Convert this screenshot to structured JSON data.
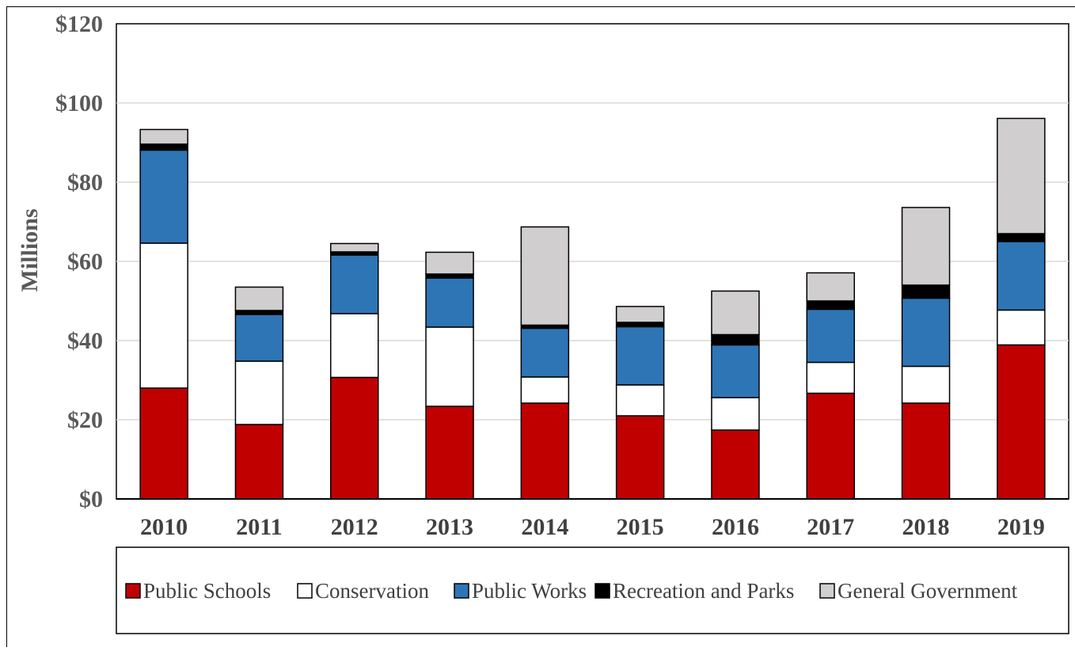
{
  "chart_data": {
    "type": "bar",
    "stacked": true,
    "title": "",
    "xlabel": "",
    "ylabel": "Millions",
    "ylim": [
      0,
      120
    ],
    "ytick_values": [
      0,
      20,
      40,
      60,
      80,
      100,
      120
    ],
    "ytick_labels": [
      "$0",
      "$20",
      "$40",
      "$60",
      "$80",
      "$100",
      "$120"
    ],
    "grid": true,
    "legend_position": "bottom",
    "categories": [
      "2010",
      "2011",
      "2012",
      "2013",
      "2014",
      "2015",
      "2016",
      "2017",
      "2018",
      "2019"
    ],
    "series": [
      {
        "name": "Public Schools",
        "color": "#c00000",
        "values": [
          28,
          18.8,
          30.7,
          23.4,
          24.2,
          21,
          17.4,
          26.7,
          24.2,
          38.9
        ]
      },
      {
        "name": "Conservation",
        "color": "#ffffff",
        "values": [
          36.6,
          16,
          16.1,
          20,
          6.6,
          7.8,
          8.2,
          7.8,
          9.3,
          8.8
        ]
      },
      {
        "name": "Public Works",
        "color": "#2e75b6",
        "values": [
          23.5,
          11.8,
          14.8,
          12.4,
          12.3,
          14.7,
          13.3,
          13.4,
          17.2,
          17.3
        ]
      },
      {
        "name": "Recreation and Parks",
        "color": "#000000",
        "values": [
          1.5,
          1,
          0.8,
          1,
          0.8,
          1.1,
          2.6,
          2.1,
          3.3,
          2
        ]
      },
      {
        "name": "General Government",
        "color": "#d0cece",
        "values": [
          3.7,
          5.9,
          2.1,
          5.5,
          24.8,
          4,
          11,
          7.1,
          19.6,
          29.1
        ]
      }
    ]
  }
}
